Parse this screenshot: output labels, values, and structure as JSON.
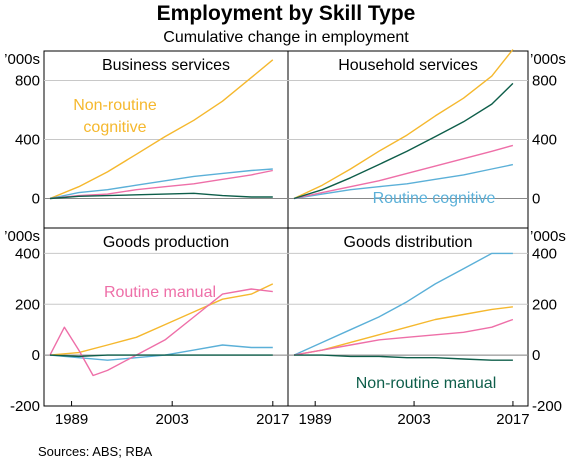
{
  "header": {
    "title": "Employment by Skill Type",
    "subtitle": "Cumulative change in employment",
    "source": "Sources:   ABS; RBA"
  },
  "colors": {
    "non_routine_cognitive": "#f5b82e",
    "routine_cognitive": "#5bb0d8",
    "routine_manual": "#ee6fa8",
    "non_routine_manual": "#0e5e4a"
  },
  "chart_data": [
    {
      "type": "line",
      "title": "Business services",
      "unit": "’000s",
      "ylim": [
        -200,
        1000
      ],
      "yticks": [
        0,
        400,
        800
      ],
      "xticks": [
        1989,
        2003,
        2017
      ],
      "xlim": [
        1986,
        2018
      ],
      "annotation": {
        "text": [
          "Non-routine",
          "cognitive"
        ],
        "series": "non_routine_cognitive"
      },
      "series": [
        {
          "name": "Non-routine cognitive",
          "key": "non_routine_cognitive",
          "x": [
            1986,
            1990,
            1994,
            1998,
            2002,
            2006,
            2010,
            2014,
            2017
          ],
          "values": [
            0,
            80,
            180,
            300,
            420,
            530,
            660,
            820,
            940
          ]
        },
        {
          "name": "Routine cognitive",
          "key": "routine_cognitive",
          "x": [
            1986,
            1990,
            1994,
            1998,
            2002,
            2006,
            2010,
            2014,
            2017
          ],
          "values": [
            0,
            40,
            60,
            90,
            120,
            150,
            170,
            190,
            200
          ]
        },
        {
          "name": "Routine manual",
          "key": "routine_manual",
          "x": [
            1986,
            1990,
            1994,
            1998,
            2002,
            2006,
            2010,
            2014,
            2017
          ],
          "values": [
            0,
            20,
            30,
            60,
            80,
            100,
            130,
            160,
            190
          ]
        },
        {
          "name": "Non-routine manual",
          "key": "non_routine_manual",
          "x": [
            1986,
            1990,
            1994,
            1998,
            2002,
            2006,
            2010,
            2014,
            2017
          ],
          "values": [
            0,
            15,
            20,
            25,
            30,
            35,
            20,
            10,
            10
          ]
        }
      ]
    },
    {
      "type": "line",
      "title": "Household services",
      "unit": "’000s",
      "ylim": [
        -200,
        1000
      ],
      "yticks": [
        0,
        400,
        800
      ],
      "xticks": [
        1989,
        2003,
        2017
      ],
      "xlim": [
        1986,
        2018
      ],
      "annotation": {
        "text": [
          "Routine cognitive"
        ],
        "series": "routine_cognitive"
      },
      "series": [
        {
          "name": "Non-routine cognitive",
          "key": "non_routine_cognitive",
          "x": [
            1986,
            1990,
            1994,
            1998,
            2002,
            2006,
            2010,
            2014,
            2017
          ],
          "values": [
            0,
            90,
            200,
            320,
            430,
            560,
            680,
            830,
            1010
          ]
        },
        {
          "name": "Routine cognitive",
          "key": "routine_cognitive",
          "x": [
            1986,
            1990,
            1994,
            1998,
            2002,
            2006,
            2010,
            2014,
            2017
          ],
          "values": [
            0,
            30,
            60,
            80,
            100,
            130,
            160,
            200,
            230
          ]
        },
        {
          "name": "Routine manual",
          "key": "routine_manual",
          "x": [
            1986,
            1990,
            1994,
            1998,
            2002,
            2006,
            2010,
            2014,
            2017
          ],
          "values": [
            0,
            40,
            80,
            120,
            170,
            220,
            270,
            320,
            360
          ]
        },
        {
          "name": "Non-routine manual",
          "key": "non_routine_manual",
          "x": [
            1986,
            1990,
            1994,
            1998,
            2002,
            2006,
            2010,
            2014,
            2017
          ],
          "values": [
            0,
            60,
            140,
            230,
            320,
            420,
            520,
            640,
            780
          ]
        }
      ]
    },
    {
      "type": "line",
      "title": "Goods production",
      "unit": "’000s",
      "ylim": [
        -200,
        500
      ],
      "yticks": [
        -200,
        0,
        200,
        400
      ],
      "xticks": [
        1989,
        2003,
        2017
      ],
      "xlim": [
        1986,
        2018
      ],
      "annotation": {
        "text": [
          "Routine manual"
        ],
        "series": "routine_manual"
      },
      "series": [
        {
          "name": "Non-routine cognitive",
          "key": "non_routine_cognitive",
          "x": [
            1986,
            1990,
            1994,
            1998,
            2002,
            2006,
            2010,
            2014,
            2017
          ],
          "values": [
            0,
            10,
            40,
            70,
            120,
            170,
            220,
            240,
            280
          ]
        },
        {
          "name": "Routine cognitive",
          "key": "routine_cognitive",
          "x": [
            1986,
            1990,
            1994,
            1998,
            2002,
            2006,
            2010,
            2014,
            2017
          ],
          "values": [
            0,
            -10,
            -20,
            -10,
            0,
            20,
            40,
            30,
            30
          ]
        },
        {
          "name": "Routine manual",
          "key": "routine_manual",
          "x": [
            1986,
            1988,
            1990,
            1992,
            1994,
            1998,
            2002,
            2006,
            2010,
            2014,
            2017
          ],
          "values": [
            0,
            110,
            20,
            -80,
            -60,
            0,
            60,
            150,
            240,
            260,
            250
          ]
        },
        {
          "name": "Non-routine manual",
          "key": "non_routine_manual",
          "x": [
            1986,
            1990,
            1994,
            1998,
            2002,
            2006,
            2010,
            2014,
            2017
          ],
          "values": [
            0,
            -5,
            0,
            0,
            0,
            0,
            0,
            0,
            0
          ]
        }
      ]
    },
    {
      "type": "line",
      "title": "Goods distribution",
      "unit": "’000s",
      "ylim": [
        -200,
        500
      ],
      "yticks": [
        -200,
        0,
        200,
        400
      ],
      "xticks": [
        1989,
        2003,
        2017
      ],
      "xlim": [
        1986,
        2018
      ],
      "annotation": {
        "text": [
          "Non-routine manual"
        ],
        "series": "non_routine_manual"
      },
      "series": [
        {
          "name": "Non-routine cognitive",
          "key": "non_routine_cognitive",
          "x": [
            1986,
            1990,
            1994,
            1998,
            2002,
            2006,
            2010,
            2014,
            2017
          ],
          "values": [
            0,
            20,
            50,
            80,
            110,
            140,
            160,
            180,
            190
          ]
        },
        {
          "name": "Routine cognitive",
          "key": "routine_cognitive",
          "x": [
            1986,
            1990,
            1994,
            1998,
            2002,
            2006,
            2010,
            2014,
            2017
          ],
          "values": [
            0,
            50,
            100,
            150,
            210,
            280,
            340,
            400,
            400
          ]
        },
        {
          "name": "Routine manual",
          "key": "routine_manual",
          "x": [
            1986,
            1990,
            1994,
            1998,
            2002,
            2006,
            2010,
            2014,
            2017
          ],
          "values": [
            0,
            20,
            40,
            60,
            70,
            80,
            90,
            110,
            140
          ]
        },
        {
          "name": "Non-routine manual",
          "key": "non_routine_manual",
          "x": [
            1986,
            1990,
            1994,
            1998,
            2002,
            2006,
            2010,
            2014,
            2017
          ],
          "values": [
            0,
            0,
            -5,
            -5,
            -10,
            -10,
            -15,
            -20,
            -20
          ]
        }
      ]
    }
  ]
}
